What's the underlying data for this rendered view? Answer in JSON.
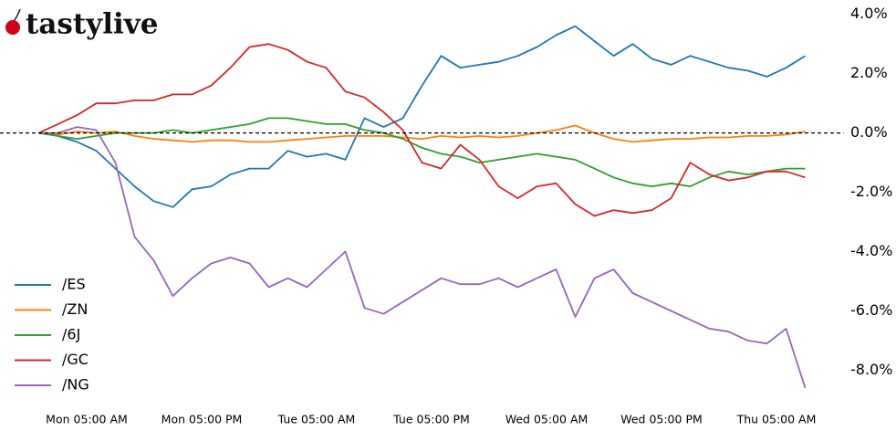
{
  "logo": "tastylive",
  "chart_data": {
    "type": "line",
    "x": [
      0,
      2,
      4,
      6,
      8,
      10,
      12,
      14,
      16,
      18,
      20,
      22,
      24,
      26,
      28,
      30,
      32,
      34,
      36,
      38,
      40,
      42,
      44,
      46,
      48,
      50,
      52,
      54,
      56,
      58,
      60,
      62,
      64,
      66,
      68,
      70,
      72,
      74,
      76,
      78,
      80
    ],
    "xlim": [
      -3,
      84
    ],
    "xticks": [
      {
        "value": 5,
        "label": "Mon 05:00 AM"
      },
      {
        "value": 17,
        "label": "Mon 05:00 PM"
      },
      {
        "value": 29,
        "label": "Tue 05:00 AM"
      },
      {
        "value": 41,
        "label": "Tue 05:00 PM"
      },
      {
        "value": 53,
        "label": "Wed 05:00 AM"
      },
      {
        "value": 65,
        "label": "Wed 05:00 PM"
      },
      {
        "value": 77,
        "label": "Thu 05:00 AM"
      }
    ],
    "ylim": [
      -8.85,
      4.3
    ],
    "yticks": [
      {
        "value": 4,
        "label": "4.0%"
      },
      {
        "value": 2,
        "label": "2.0%"
      },
      {
        "value": 0,
        "label": "0.0%"
      },
      {
        "value": -2,
        "label": "-2.0%"
      },
      {
        "value": -4,
        "label": "-4.0%"
      },
      {
        "value": -6,
        "label": "-6.0%"
      },
      {
        "value": -8,
        "label": "-8.0%"
      }
    ],
    "reference_line": 0,
    "legend": "lower left",
    "series": [
      {
        "name": "/ES",
        "color": "#1f77b4",
        "values": [
          0,
          -0.1,
          -0.3,
          -0.6,
          -1.2,
          -1.8,
          -2.3,
          -2.5,
          -1.9,
          -1.8,
          -1.4,
          -1.2,
          -1.2,
          -0.6,
          -0.8,
          -0.7,
          -0.9,
          0.5,
          0.2,
          0.5,
          1.6,
          2.6,
          2.2,
          2.3,
          2.4,
          2.6,
          2.9,
          3.3,
          3.6,
          3.1,
          2.6,
          3.0,
          2.5,
          2.3,
          2.6,
          2.4,
          2.2,
          2.1,
          1.9,
          2.2,
          2.6
        ]
      },
      {
        "name": "/ZN",
        "color": "#ff7f0e",
        "values": [
          0,
          -0.05,
          0.05,
          0,
          0.05,
          -0.1,
          -0.2,
          -0.25,
          -0.3,
          -0.25,
          -0.25,
          -0.3,
          -0.3,
          -0.25,
          -0.2,
          -0.15,
          -0.1,
          -0.1,
          -0.1,
          -0.15,
          -0.2,
          -0.1,
          -0.15,
          -0.1,
          -0.15,
          -0.1,
          0,
          0.1,
          0.25,
          0,
          -0.2,
          -0.3,
          -0.25,
          -0.2,
          -0.2,
          -0.15,
          -0.15,
          -0.1,
          -0.1,
          -0.05,
          0.05
        ]
      },
      {
        "name": "/6J",
        "color": "#2ca02c",
        "values": [
          0,
          -0.1,
          -0.2,
          -0.1,
          0,
          0,
          0,
          0.1,
          0,
          0.1,
          0.2,
          0.3,
          0.5,
          0.5,
          0.4,
          0.3,
          0.3,
          0.1,
          0,
          -0.2,
          -0.5,
          -0.7,
          -0.8,
          -1.0,
          -0.9,
          -0.8,
          -0.7,
          -0.8,
          -0.9,
          -1.2,
          -1.5,
          -1.7,
          -1.8,
          -1.7,
          -1.8,
          -1.5,
          -1.3,
          -1.4,
          -1.3,
          -1.2,
          -1.2
        ]
      },
      {
        "name": "/GC",
        "color": "#d62728",
        "values": [
          0,
          0.3,
          0.6,
          1.0,
          1.0,
          1.1,
          1.1,
          1.3,
          1.3,
          1.6,
          2.2,
          2.9,
          3.0,
          2.8,
          2.4,
          2.2,
          1.4,
          1.2,
          0.7,
          0.1,
          -1.0,
          -1.2,
          -0.4,
          -0.9,
          -1.8,
          -2.2,
          -1.8,
          -1.7,
          -2.4,
          -2.8,
          -2.6,
          -2.7,
          -2.6,
          -2.2,
          -1.0,
          -1.4,
          -1.6,
          -1.5,
          -1.3,
          -1.3,
          -1.5
        ]
      },
      {
        "name": "/NG",
        "color": "#9467bd",
        "values": [
          0,
          0,
          0.2,
          0.1,
          -1.0,
          -3.5,
          -4.3,
          -5.5,
          -4.9,
          -4.4,
          -4.2,
          -4.4,
          -5.2,
          -4.9,
          -5.2,
          -4.6,
          -4.0,
          -5.9,
          -6.1,
          -5.7,
          -5.3,
          -4.9,
          -5.1,
          -5.1,
          -4.9,
          -5.2,
          -4.9,
          -4.6,
          -6.2,
          -4.9,
          -4.6,
          -5.4,
          -5.7,
          -6.0,
          -6.3,
          -6.6,
          -6.7,
          -7.0,
          -7.1,
          -6.6,
          -8.6
        ]
      }
    ]
  }
}
